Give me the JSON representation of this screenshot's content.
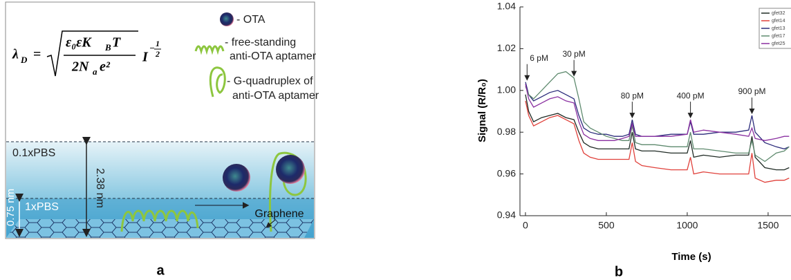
{
  "panel_a": {
    "equation": {
      "lhs": "λ",
      "lhs_sub": "D",
      "equals": "=",
      "num1": "ε₀εK",
      "num_sub": "B",
      "num2": "T",
      "den1": "2N",
      "den_sub": "a",
      "den2": "e²",
      "current": "I",
      "exp_sign": "−",
      "exp_num": "1",
      "exp_den": "2"
    },
    "legend": {
      "ota": "- OTA",
      "free_1": "- free-standing",
      "free_2": "anti-OTA aptamer",
      "gq_1": "- G-quadruplex of",
      "gq_2": "anti-OTA aptamer"
    },
    "buffer_top": "0.1xPBS",
    "buffer_bottom": "1xPBS",
    "distance_long": "2.38 nm",
    "distance_short": "0.75 nm",
    "surface": "Graphene",
    "panel_label": "a"
  },
  "chart_data": {
    "type": "line",
    "panel_label": "b",
    "xlabel": "Time (s)",
    "ylabel": "Signal (R/R₀)",
    "xlim": [
      -34,
      1650
    ],
    "xticks": [
      0,
      500,
      1000,
      1500
    ],
    "ylim": [
      0.94,
      1.04
    ],
    "yticks": [
      0.94,
      0.96,
      0.98,
      {
        "value": 1,
        "label": "1.00"
      },
      1.02,
      1.04
    ],
    "legend": "top-right",
    "x": [
      0,
      20,
      50,
      100,
      150,
      200,
      250,
      300,
      330,
      360,
      400,
      450,
      500,
      550,
      600,
      640,
      660,
      680,
      720,
      800,
      900,
      1000,
      1020,
      1040,
      1100,
      1200,
      1300,
      1380,
      1400,
      1420,
      1480,
      1550,
      1600,
      1630
    ],
    "series": [
      {
        "name": "gfet32",
        "color": "#1f2a24",
        "values": [
          0.998,
          0.99,
          0.985,
          0.987,
          0.988,
          0.989,
          0.987,
          0.986,
          0.98,
          0.975,
          0.973,
          0.972,
          0.972,
          0.972,
          0.972,
          0.972,
          0.98,
          0.972,
          0.971,
          0.971,
          0.97,
          0.97,
          0.976,
          0.968,
          0.969,
          0.968,
          0.969,
          0.969,
          0.978,
          0.968,
          0.963,
          0.962,
          0.962,
          0.963
        ]
      },
      {
        "name": "gfet14",
        "color": "#e0403a",
        "values": [
          0.995,
          0.988,
          0.983,
          0.985,
          0.987,
          0.988,
          0.986,
          0.984,
          0.976,
          0.97,
          0.968,
          0.967,
          0.967,
          0.967,
          0.967,
          0.967,
          0.975,
          0.966,
          0.964,
          0.963,
          0.962,
          0.962,
          0.968,
          0.96,
          0.961,
          0.96,
          0.96,
          0.96,
          0.97,
          0.958,
          0.956,
          0.957,
          0.957,
          0.958
        ]
      },
      {
        "name": "gfet13",
        "color": "#2a2a7a",
        "values": [
          1.004,
          0.998,
          0.995,
          0.997,
          0.999,
          1.0,
          0.998,
          0.996,
          0.988,
          0.982,
          0.98,
          0.979,
          0.979,
          0.978,
          0.978,
          0.979,
          0.986,
          0.979,
          0.978,
          0.978,
          0.979,
          0.979,
          0.985,
          0.979,
          0.979,
          0.98,
          0.98,
          0.981,
          0.988,
          0.98,
          0.975,
          0.973,
          0.972,
          0.973
        ]
      },
      {
        "name": "gfet17",
        "color": "#5e8a6e",
        "values": [
          1.002,
          0.998,
          0.996,
          1.0,
          1.004,
          1.008,
          1.009,
          1.006,
          0.996,
          0.985,
          0.982,
          0.98,
          0.978,
          0.977,
          0.976,
          0.976,
          0.983,
          0.975,
          0.974,
          0.974,
          0.973,
          0.973,
          0.98,
          0.972,
          0.972,
          0.971,
          0.97,
          0.97,
          0.976,
          0.969,
          0.966,
          0.97,
          0.971,
          0.973
        ]
      },
      {
        "name": "gfet25",
        "color": "#8a2fa0",
        "values": [
          1.003,
          0.996,
          0.992,
          0.994,
          0.996,
          0.997,
          0.995,
          0.994,
          0.985,
          0.979,
          0.977,
          0.976,
          0.976,
          0.976,
          0.977,
          0.978,
          0.984,
          0.978,
          0.978,
          0.978,
          0.978,
          0.979,
          0.986,
          0.98,
          0.981,
          0.98,
          0.979,
          0.978,
          0.982,
          0.977,
          0.976,
          0.977,
          0.978,
          0.978
        ]
      }
    ],
    "annotations": [
      {
        "text": "6 pM",
        "x": 10
      },
      {
        "text": "30 pM",
        "x": 300
      },
      {
        "text": "80 pM",
        "x": 660
      },
      {
        "text": "400 pM",
        "x": 1020
      },
      {
        "text": "900 pM",
        "x": 1400
      }
    ]
  }
}
